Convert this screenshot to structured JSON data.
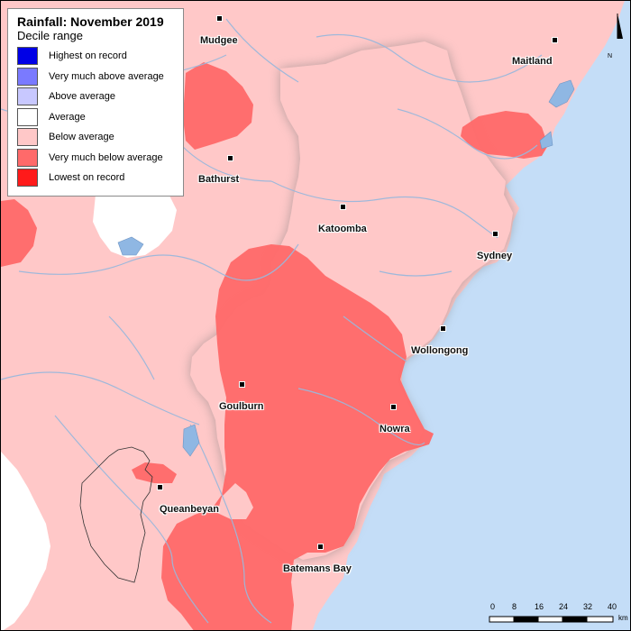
{
  "legend": {
    "title": "Rainfall: November 2019",
    "subtitle": "Decile range",
    "items": [
      {
        "label": "Highest on record",
        "color": "#0000e6"
      },
      {
        "label": "Very much above average",
        "color": "#7a7aff"
      },
      {
        "label": "Above average",
        "color": "#c8c8ff"
      },
      {
        "label": "Average",
        "color": "#ffffff"
      },
      {
        "label": "Below average",
        "color": "#ffc8c8"
      },
      {
        "label": "Very much below average",
        "color": "#ff6a6a"
      },
      {
        "label": "Lowest on record",
        "color": "#ff1a1a"
      }
    ]
  },
  "towns": [
    {
      "name": "Mudgee"
    },
    {
      "name": "Maitland"
    },
    {
      "name": "Bathurst"
    },
    {
      "name": "Katoomba"
    },
    {
      "name": "Sydney"
    },
    {
      "name": "Wollongong"
    },
    {
      "name": "Goulburn"
    },
    {
      "name": "Nowra"
    },
    {
      "name": "Queanbeyan"
    },
    {
      "name": "Batemans Bay"
    }
  ],
  "scale_bar": {
    "ticks": [
      "0",
      "8",
      "16",
      "24",
      "32",
      "40"
    ],
    "unit": "km"
  },
  "north_arrow": {
    "label": "N"
  },
  "colors": {
    "ocean": "#c4ddf7",
    "rivers": "#9ab8dc"
  }
}
